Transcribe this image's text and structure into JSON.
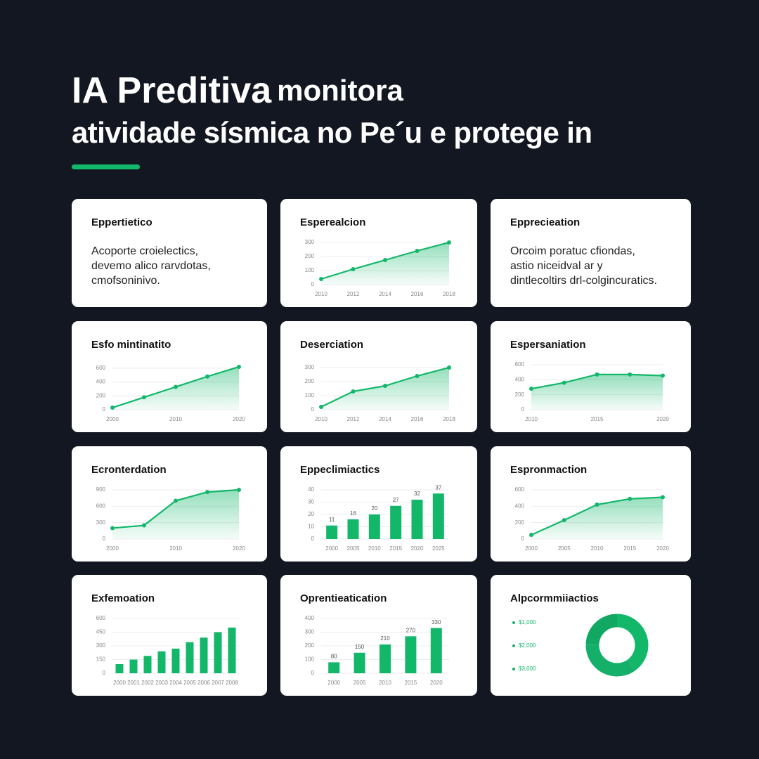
{
  "header": {
    "title_bold": "IA Preditiva",
    "title_rest": "monitora",
    "subtitle": "atividade sísmica no Pe´u e protege in"
  },
  "cards": [
    {
      "title": "Eppertietico",
      "lines": [
        "Acoporte croielectics,",
        "devemo alico rarvdotas,",
        "cmofsoninivo."
      ]
    },
    {
      "title": "Esperealcion",
      "chart_data": {
        "type": "line",
        "color": "#12b76a",
        "categories": [
          "2010",
          "2012",
          "2014",
          "2016",
          "2018"
        ],
        "values": [
          40,
          110,
          175,
          240,
          300
        ],
        "ylim": [
          0,
          300
        ],
        "yticks": [
          0,
          100,
          200,
          300
        ]
      }
    },
    {
      "title": "Epprecieation",
      "lines": [
        "Orcoim poratuc cfiondas,",
        "astio niceidval ar y",
        "dintlecoltirs drl-colgincuratics."
      ]
    },
    {
      "title": "Esfo mintinatito",
      "chart_data": {
        "type": "line",
        "color": "#12b76a",
        "categories": [
          "2000",
          null,
          "2010",
          null,
          "2020"
        ],
        "values": [
          30,
          180,
          330,
          480,
          620
        ],
        "ylim": [
          0,
          650
        ],
        "yticks": [
          0,
          200,
          400,
          600
        ]
      }
    },
    {
      "title": "Deserciation",
      "chart_data": {
        "type": "line",
        "color": "#12b76a",
        "categories": [
          "2010",
          "2012",
          "2014",
          "2016",
          "2018"
        ],
        "values": [
          20,
          130,
          170,
          240,
          300
        ],
        "ylim": [
          0,
          320
        ],
        "yticks": [
          0,
          100,
          200,
          300
        ]
      }
    },
    {
      "title": "Espersaniation",
      "chart_data": {
        "type": "line",
        "color": "#12b76a",
        "categories": [
          "2010",
          null,
          "2015",
          null,
          "2020"
        ],
        "values": [
          280,
          360,
          470,
          470,
          455
        ],
        "ylim": [
          0,
          600
        ],
        "yticks": [
          0,
          200,
          400,
          600
        ]
      }
    },
    {
      "title": "Ecronterdation",
      "chart_data": {
        "type": "line",
        "color": "#12b76a",
        "categories": [
          "2000",
          null,
          "2010",
          null,
          "2020"
        ],
        "values": [
          200,
          250,
          700,
          860,
          900
        ],
        "ylim": [
          0,
          900
        ],
        "yticks": [
          0,
          300,
          600,
          900
        ]
      }
    },
    {
      "title": "Eppeclimiactics",
      "chart_data": {
        "type": "bar",
        "color": "#12b76a",
        "categories": [
          "2000",
          "2005",
          "2010",
          "2015",
          "2020",
          "2025"
        ],
        "values": [
          11,
          16,
          20,
          27,
          32,
          37
        ],
        "value_labels": [
          "11",
          "16",
          "20",
          "27",
          "32",
          "37"
        ],
        "ylim": [
          0,
          40
        ],
        "yticks": [
          0,
          10,
          20,
          30,
          40
        ]
      }
    },
    {
      "title": "Espronmaction",
      "chart_data": {
        "type": "line",
        "color": "#12b76a",
        "categories": [
          "2000",
          "2005",
          "2010",
          "2015",
          "2020"
        ],
        "values": [
          50,
          230,
          420,
          490,
          510
        ],
        "ylim": [
          0,
          600
        ],
        "yticks": [
          0,
          200,
          400,
          600
        ]
      }
    },
    {
      "title": "Exfemoation",
      "chart_data": {
        "type": "bar",
        "color": "#12b76a",
        "categories": [
          "2000",
          "2001",
          "2002",
          "2003",
          "2004",
          "2005",
          "2006",
          "2007",
          "2008"
        ],
        "values": [
          100,
          150,
          190,
          240,
          270,
          340,
          390,
          450,
          500
        ],
        "ylim": [
          0,
          600
        ],
        "yticks": [
          0,
          150,
          300,
          450,
          600
        ]
      }
    },
    {
      "title": "Oprentieatication",
      "chart_data": {
        "type": "bar",
        "color": "#12b76a",
        "categories": [
          "2000",
          "2005",
          "2010",
          "2015",
          "2020"
        ],
        "values": [
          80,
          150,
          210,
          270,
          330
        ],
        "value_labels": [
          "80",
          "150",
          "210",
          "270",
          "330"
        ],
        "ylim": [
          0,
          400
        ],
        "yticks": [
          0,
          100,
          200,
          300,
          400
        ]
      }
    },
    {
      "title": "Alpcormmiiactios",
      "chart_data": {
        "type": "pie",
        "donut": true,
        "series": [
          {
            "name": "$1,000",
            "color": "#12b76a",
            "value": 40
          },
          {
            "name": "$2,000",
            "color": "#14b06a",
            "value": 35
          },
          {
            "name": "$3,000",
            "color": "#10a862",
            "value": 25
          }
        ]
      }
    }
  ]
}
